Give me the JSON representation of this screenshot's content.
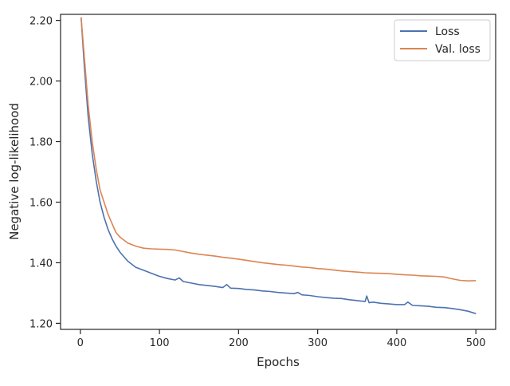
{
  "chart_data": {
    "type": "line",
    "title": "",
    "xlabel": "Epochs",
    "ylabel": "Negative log-likelihood",
    "xlim": [
      -25,
      525
    ],
    "ylim": [
      1.18,
      2.22
    ],
    "xticks": [
      0,
      100,
      200,
      300,
      400,
      500
    ],
    "yticks": [
      1.2,
      1.4,
      1.6,
      1.8,
      2.0,
      2.2
    ],
    "ytick_labels": [
      "1.20",
      "1.40",
      "1.60",
      "1.80",
      "2.00",
      "2.20"
    ],
    "xtick_labels": [
      "0",
      "100",
      "200",
      "300",
      "400",
      "500"
    ],
    "grid": false,
    "legend": "top-right",
    "series": [
      {
        "name": "Loss",
        "color": "#4c72b0",
        "x": [
          1,
          5,
          10,
          15,
          20,
          25,
          30,
          35,
          40,
          45,
          50,
          60,
          70,
          80,
          90,
          100,
          110,
          120,
          125,
          130,
          140,
          150,
          160,
          170,
          180,
          185,
          190,
          200,
          210,
          220,
          230,
          240,
          250,
          260,
          270,
          275,
          280,
          290,
          300,
          310,
          320,
          330,
          340,
          350,
          360,
          362,
          365,
          370,
          380,
          390,
          400,
          410,
          414,
          420,
          430,
          440,
          450,
          460,
          470,
          480,
          490,
          500
        ],
        "values": [
          2.21,
          2.05,
          1.88,
          1.76,
          1.67,
          1.6,
          1.55,
          1.51,
          1.48,
          1.455,
          1.435,
          1.405,
          1.385,
          1.375,
          1.365,
          1.355,
          1.348,
          1.343,
          1.35,
          1.338,
          1.333,
          1.328,
          1.325,
          1.322,
          1.318,
          1.328,
          1.316,
          1.315,
          1.312,
          1.31,
          1.307,
          1.305,
          1.302,
          1.3,
          1.298,
          1.302,
          1.294,
          1.292,
          1.288,
          1.285,
          1.283,
          1.282,
          1.278,
          1.275,
          1.272,
          1.29,
          1.268,
          1.27,
          1.266,
          1.264,
          1.262,
          1.262,
          1.27,
          1.259,
          1.258,
          1.256,
          1.253,
          1.252,
          1.249,
          1.245,
          1.24,
          1.232
        ]
      },
      {
        "name": "Val. loss",
        "color": "#dd8452",
        "x": [
          1,
          5,
          10,
          15,
          20,
          25,
          30,
          35,
          40,
          45,
          50,
          55,
          60,
          70,
          80,
          90,
          100,
          110,
          120,
          130,
          140,
          150,
          160,
          170,
          180,
          190,
          200,
          210,
          220,
          230,
          240,
          250,
          260,
          270,
          280,
          290,
          300,
          310,
          320,
          330,
          340,
          350,
          360,
          370,
          380,
          390,
          400,
          410,
          420,
          430,
          440,
          450,
          460,
          470,
          480,
          490,
          500
        ],
        "values": [
          2.21,
          2.08,
          1.92,
          1.8,
          1.71,
          1.64,
          1.6,
          1.56,
          1.53,
          1.5,
          1.485,
          1.475,
          1.465,
          1.455,
          1.448,
          1.446,
          1.445,
          1.444,
          1.442,
          1.437,
          1.432,
          1.428,
          1.425,
          1.422,
          1.418,
          1.415,
          1.412,
          1.408,
          1.404,
          1.4,
          1.397,
          1.394,
          1.392,
          1.389,
          1.386,
          1.384,
          1.381,
          1.379,
          1.376,
          1.373,
          1.371,
          1.369,
          1.367,
          1.366,
          1.365,
          1.364,
          1.362,
          1.36,
          1.359,
          1.357,
          1.356,
          1.355,
          1.353,
          1.347,
          1.342,
          1.34,
          1.341
        ]
      }
    ]
  }
}
